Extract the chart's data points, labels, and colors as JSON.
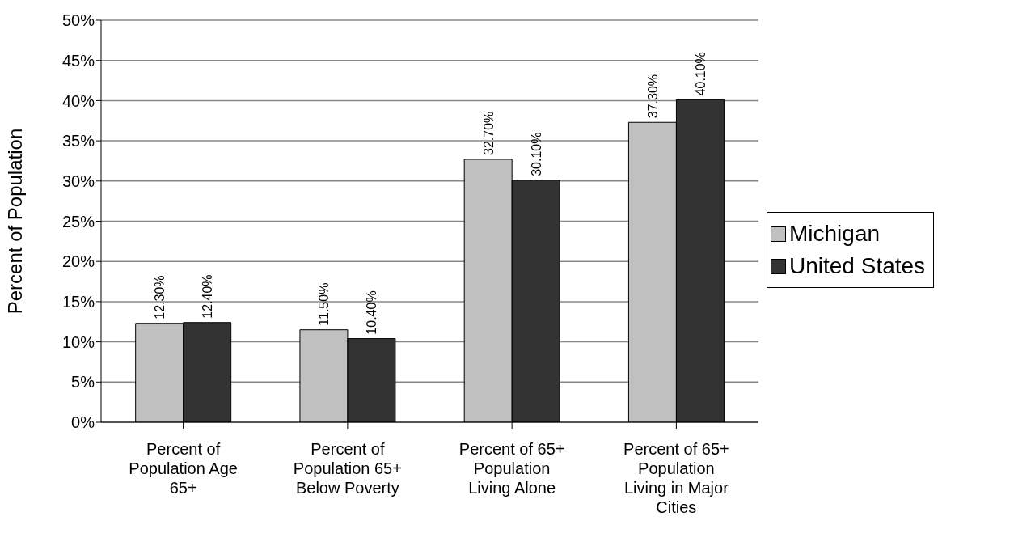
{
  "chart_data": {
    "type": "bar",
    "ylabel": "Percent of Population",
    "categories": [
      "Percent of Population Age 65+",
      "Percent of Population 65+ Below Poverty",
      "Percent of 65+ Population Living Alone",
      "Percent of 65+ Population Living in Major Cities"
    ],
    "series": [
      {
        "name": "Michigan",
        "color": "#c0c0c0",
        "values": [
          12.3,
          11.5,
          32.7,
          37.3
        ],
        "value_labels": [
          "12.30%",
          "11.50%",
          "32.70%",
          "37.30%"
        ]
      },
      {
        "name": "United States",
        "color": "#333333",
        "values": [
          12.4,
          10.4,
          30.1,
          40.1
        ],
        "value_labels": [
          "12.40%",
          "10.40%",
          "30.10%",
          "40.10%"
        ]
      }
    ],
    "ylim": [
      0,
      50
    ],
    "yticks": [
      {
        "value": 0,
        "label": "0%"
      },
      {
        "value": 5,
        "label": "5%"
      },
      {
        "value": 10,
        "label": "10%"
      },
      {
        "value": 15,
        "label": "15%"
      },
      {
        "value": 20,
        "label": "20%"
      },
      {
        "value": 25,
        "label": "25%"
      },
      {
        "value": 30,
        "label": "30%"
      },
      {
        "value": 35,
        "label": "35%"
      },
      {
        "value": 40,
        "label": "40%"
      },
      {
        "value": 45,
        "label": "45%"
      },
      {
        "value": 50,
        "label": "50%"
      }
    ],
    "grid": "y",
    "legend": "right"
  }
}
